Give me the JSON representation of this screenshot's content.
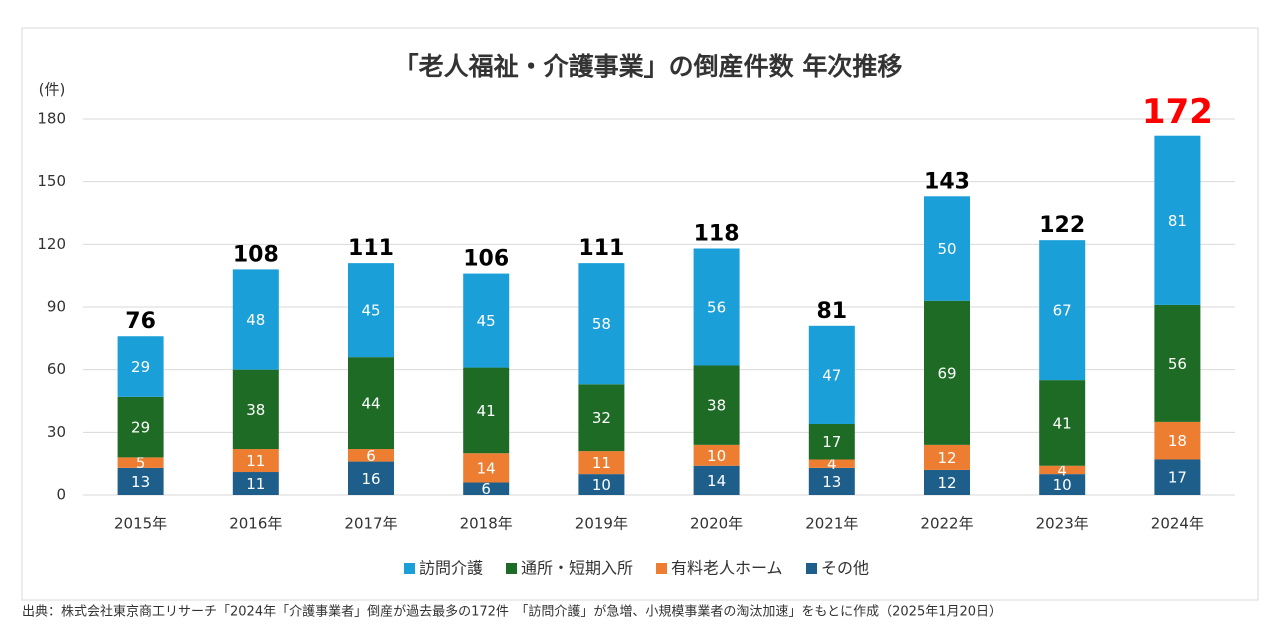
{
  "chart_data": {
    "type": "stacked-bar",
    "title": "「老人福祉・介護事業」の倒産件数 年次推移",
    "y_unit": "(件)",
    "categories": [
      "2015年",
      "2016年",
      "2017年",
      "2018年",
      "2019年",
      "2020年",
      "2021年",
      "2022年",
      "2023年",
      "2024年"
    ],
    "series": [
      {
        "name": "その他",
        "color": "#1d5f8a",
        "values": [
          13,
          11,
          16,
          6,
          10,
          14,
          13,
          12,
          10,
          17
        ]
      },
      {
        "name": "有料老人ホーム",
        "color": "#ed7d31",
        "values": [
          5,
          11,
          6,
          14,
          11,
          10,
          4,
          12,
          4,
          18
        ]
      },
      {
        "name": "通所・短期入所",
        "color": "#1e6b26",
        "values": [
          29,
          38,
          44,
          41,
          32,
          38,
          17,
          69,
          41,
          56
        ]
      },
      {
        "name": "訪問介護",
        "color": "#1a9fd8",
        "values": [
          29,
          48,
          45,
          45,
          58,
          56,
          47,
          50,
          67,
          81
        ]
      }
    ],
    "legend_order": [
      3,
      2,
      1,
      0
    ],
    "totals": [
      76,
      108,
      111,
      106,
      111,
      118,
      81,
      143,
      122,
      172
    ],
    "total_colors": [
      "#000000",
      "#000000",
      "#000000",
      "#000000",
      "#000000",
      "#000000",
      "#000000",
      "#000000",
      "#000000",
      "#ff0000"
    ],
    "ylim": [
      0,
      180
    ],
    "yticks": [
      0,
      30,
      60,
      90,
      120,
      150,
      180
    ],
    "grid": true,
    "source": "出典：株式会社東京商工リサーチ「2024年「介護事業者」倒産が過去最多の172件　「訪問介護」が急増、小規模事業者の淘汰加速」をもとに作成（2025年1月20日）"
  }
}
